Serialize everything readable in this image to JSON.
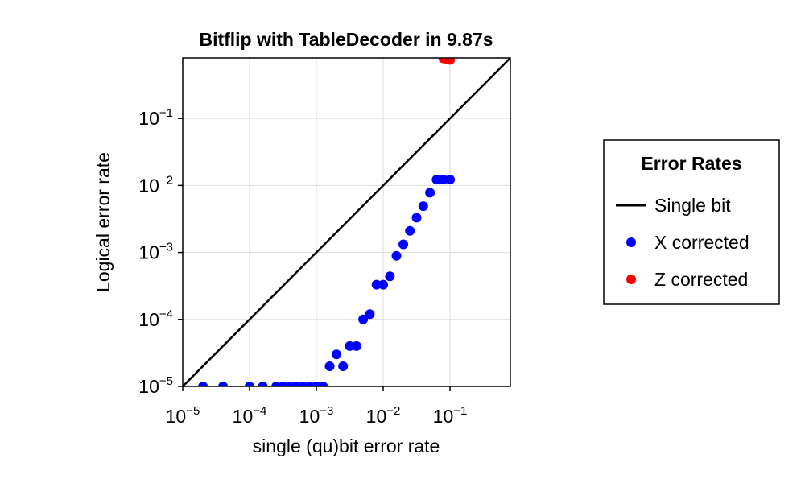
{
  "chart_data": {
    "type": "scatter",
    "title": "Bitflip with TableDecoder in 9.87s",
    "xlabel": "single (qu)bit error rate",
    "ylabel": "Logical error rate",
    "xscale": "log",
    "yscale": "log",
    "xlim": [
      1e-05,
      0.8
    ],
    "ylim": [
      1e-05,
      0.8
    ],
    "grid": true,
    "x_ticks": [
      {
        "base": "10",
        "exp": "−5",
        "value": 1e-05
      },
      {
        "base": "10",
        "exp": "−4",
        "value": 0.0001
      },
      {
        "base": "10",
        "exp": "−3",
        "value": 0.001
      },
      {
        "base": "10",
        "exp": "−2",
        "value": 0.01
      },
      {
        "base": "10",
        "exp": "−1",
        "value": 0.1
      }
    ],
    "y_ticks": [
      {
        "base": "10",
        "exp": "−5",
        "value": 1e-05
      },
      {
        "base": "10",
        "exp": "−4",
        "value": 0.0001
      },
      {
        "base": "10",
        "exp": "−3",
        "value": 0.001
      },
      {
        "base": "10",
        "exp": "−2",
        "value": 0.01
      },
      {
        "base": "10",
        "exp": "−1",
        "value": 0.1
      }
    ],
    "legend": {
      "title": "Error Rates",
      "position": "right",
      "entries": [
        {
          "label": "Single bit",
          "kind": "line",
          "color": "#000000"
        },
        {
          "label": "X corrected",
          "kind": "marker",
          "color": "#0000ff"
        },
        {
          "label": "Z corrected",
          "kind": "marker",
          "color": "#ff0000"
        }
      ]
    },
    "series": [
      {
        "name": "Single bit",
        "kind": "line",
        "color": "#000000",
        "x": [
          1e-05,
          0.8
        ],
        "y": [
          1e-05,
          0.8
        ]
      },
      {
        "name": "X corrected",
        "kind": "scatter",
        "color": "#0000ff",
        "x": [
          2.01e-05,
          4.01e-05,
          0.0001,
          0.000158,
          0.000251,
          0.000316,
          0.000398,
          0.000501,
          0.000631,
          0.000794,
          0.001,
          0.00126,
          0.00158,
          0.002,
          0.00251,
          0.00316,
          0.00398,
          0.00501,
          0.00631,
          0.00794,
          0.01,
          0.0126,
          0.0158,
          0.02,
          0.0251,
          0.0316,
          0.0398,
          0.0501,
          0.0631,
          0.0794,
          0.1
        ],
        "y": [
          1e-05,
          1e-05,
          1e-05,
          1e-05,
          1e-05,
          1e-05,
          1e-05,
          1e-05,
          1e-05,
          1e-05,
          1e-05,
          1e-05,
          2e-05,
          3e-05,
          2e-05,
          4e-05,
          4e-05,
          0.0001,
          0.00012,
          0.00033,
          0.00033,
          0.00044,
          0.00089,
          0.00132,
          0.0021,
          0.0033,
          0.0049,
          0.0078,
          0.0122,
          0.0122,
          0.0122
        ]
      },
      {
        "name": "Z corrected",
        "kind": "scatter",
        "color": "#ff0000",
        "x": [
          0.0794,
          0.0891,
          0.1
        ],
        "y": [
          0.79,
          0.77,
          0.75
        ]
      }
    ]
  }
}
